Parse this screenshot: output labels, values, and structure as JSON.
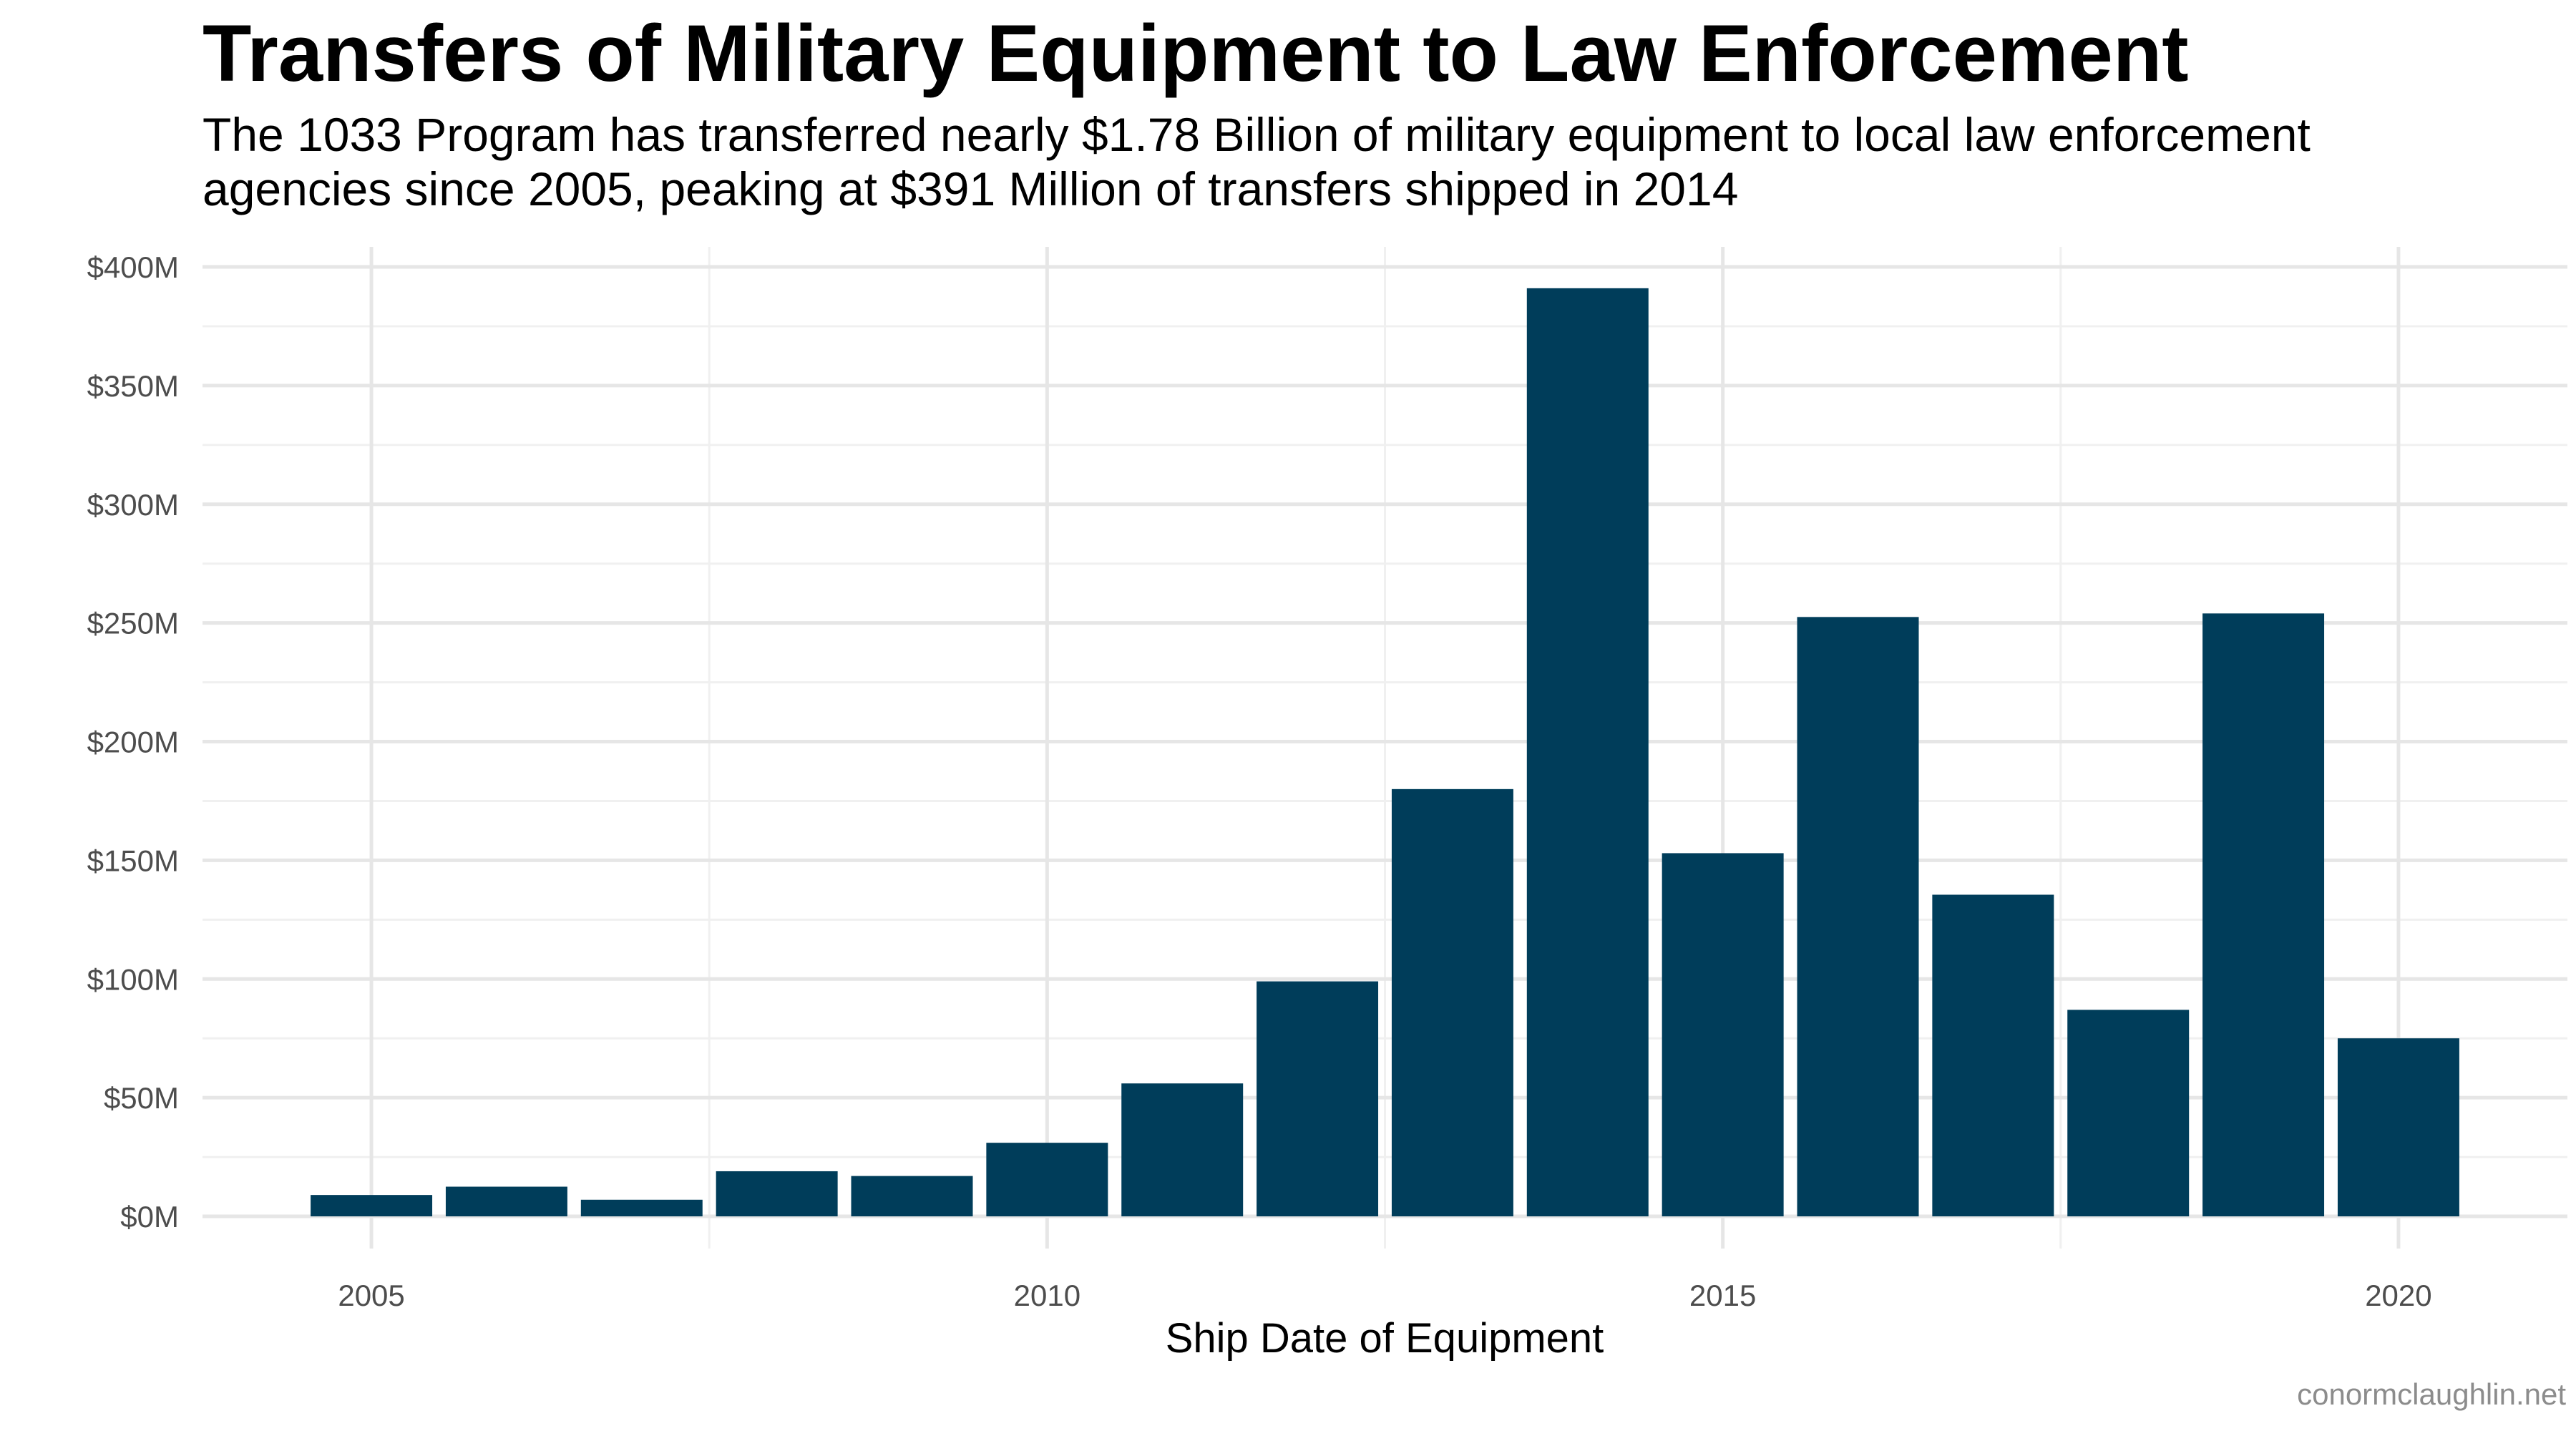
{
  "chart_data": {
    "type": "bar",
    "title": "Transfers of Military Equipment to Law Enforcement",
    "subtitle_lines": [
      "The 1033 Program has transferred nearly $1.78 Billion of military equipment to local law enforcement",
      "agencies since 2005, peaking at $391 Million of transfers shipped in 2014"
    ],
    "xlabel": "Ship Date of Equipment",
    "ylabel": "",
    "caption": "conormclaughlin.net",
    "bar_color": "#003d5a",
    "x": [
      2005,
      2006,
      2007,
      2008,
      2009,
      2010,
      2011,
      2012,
      2013,
      2014,
      2015,
      2016,
      2017,
      2018,
      2019,
      2020
    ],
    "values_millions": [
      9,
      12.5,
      7,
      19,
      17,
      31,
      56,
      99,
      180,
      391,
      153,
      252.5,
      135.5,
      87,
      254,
      75
    ],
    "x_ticks": [
      2005,
      2010,
      2015,
      2020
    ],
    "x_tick_labels": [
      "2005",
      "2010",
      "2015",
      "2020"
    ],
    "xlim": [
      2003.75,
      2021.25
    ],
    "y_ticks_millions": [
      0,
      50,
      100,
      150,
      200,
      250,
      300,
      350,
      400
    ],
    "y_tick_labels": [
      "$0M",
      "$50M",
      "$100M",
      "$150M",
      "$200M",
      "$250M",
      "$300M",
      "$350M",
      "$400M"
    ],
    "ylim_millions": [
      0,
      400
    ],
    "grid": true,
    "legend": "none"
  }
}
